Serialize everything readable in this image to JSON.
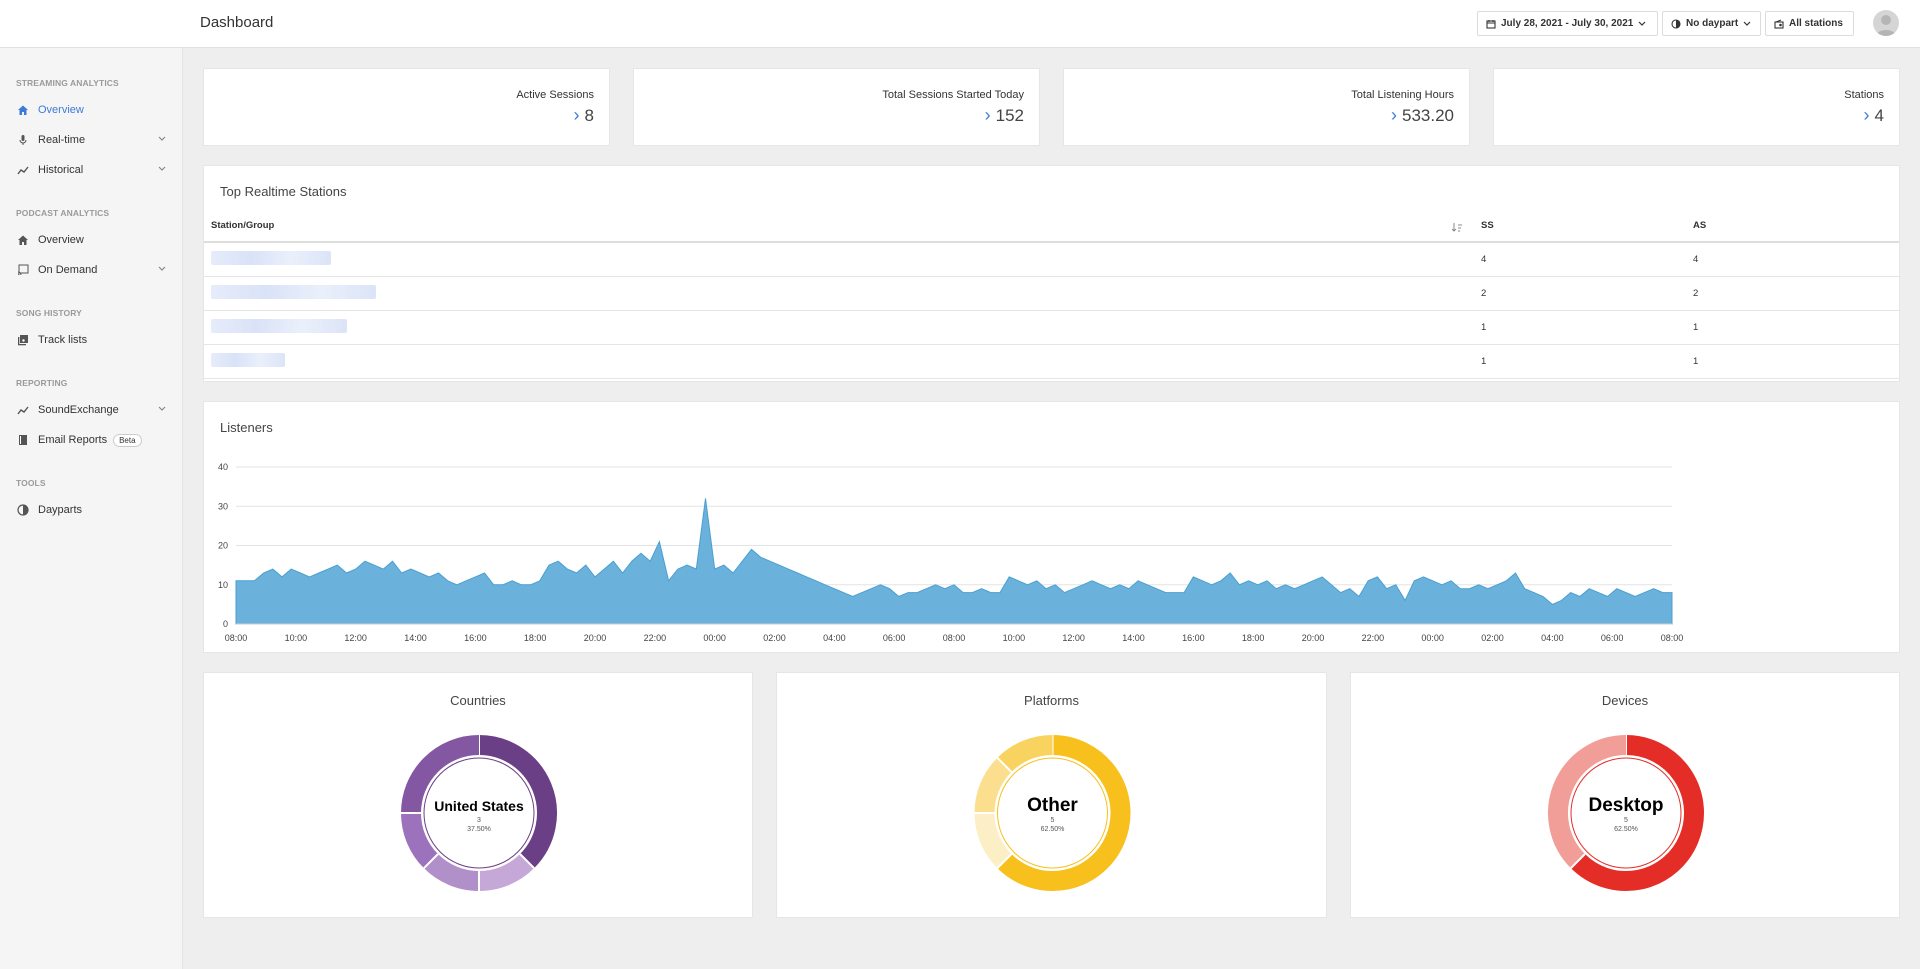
{
  "header": {
    "title": "Dashboard",
    "date_range": "July 28, 2021 - July 30, 2021",
    "daypart": "No daypart",
    "stations": "All stations"
  },
  "sidebar": {
    "streaming_head": "STREAMING ANALYTICS",
    "overview": "Overview",
    "realtime": "Real-time",
    "historical": "Historical",
    "podcast_head": "PODCAST ANALYTICS",
    "podcast_overview": "Overview",
    "on_demand": "On Demand",
    "song_head": "SONG HISTORY",
    "track_lists": "Track lists",
    "reporting_head": "REPORTING",
    "soundexchange": "SoundExchange",
    "email_reports": "Email Reports",
    "beta": "Beta",
    "tools_head": "TOOLS",
    "dayparts": "Dayparts"
  },
  "stats": [
    {
      "label": "Active Sessions",
      "value": "8"
    },
    {
      "label": "Total Sessions Started Today",
      "value": "152"
    },
    {
      "label": "Total Listening Hours",
      "value": "533.20"
    },
    {
      "label": "Stations",
      "value": "4"
    }
  ],
  "top_stations": {
    "title": "Top Realtime Stations",
    "columns": [
      "Station/Group",
      "SS",
      "AS"
    ],
    "rows": [
      {
        "ss": "4",
        "as": "4"
      },
      {
        "ss": "2",
        "as": "2"
      },
      {
        "ss": "1",
        "as": "1"
      },
      {
        "ss": "1",
        "as": "1"
      }
    ]
  },
  "listeners": {
    "title": "Listeners"
  },
  "chart_data": {
    "type": "area",
    "color": "#6ab2dc",
    "ylim": [
      0,
      40
    ],
    "yticks": [
      "0",
      "10",
      "20",
      "30",
      "40"
    ],
    "xticks": [
      "08:00",
      "10:00",
      "12:00",
      "14:00",
      "16:00",
      "18:00",
      "20:00",
      "22:00",
      "00:00",
      "02:00",
      "04:00",
      "06:00",
      "08:00",
      "10:00",
      "12:00",
      "14:00",
      "16:00",
      "18:00",
      "20:00",
      "22:00",
      "00:00",
      "02:00",
      "04:00",
      "06:00",
      "08:00"
    ],
    "values": [
      11,
      11,
      11,
      13,
      14,
      12,
      14,
      13,
      12,
      13,
      14,
      15,
      13,
      14,
      16,
      15,
      14,
      16,
      13,
      14,
      13,
      12,
      13,
      11,
      10,
      11,
      12,
      13,
      10,
      10,
      11,
      10,
      10,
      11,
      15,
      16,
      14,
      13,
      15,
      12,
      14,
      16,
      13,
      16,
      18,
      16,
      21,
      11,
      14,
      15,
      14,
      32,
      14,
      15,
      13,
      16,
      19,
      17,
      16,
      15,
      14,
      13,
      12,
      11,
      10,
      9,
      8,
      7,
      8,
      9,
      10,
      9,
      7,
      8,
      8,
      9,
      10,
      9,
      10,
      8,
      8,
      9,
      8,
      8,
      12,
      11,
      10,
      11,
      9,
      10,
      8,
      9,
      10,
      11,
      10,
      9,
      10,
      9,
      11,
      10,
      9,
      8,
      8,
      8,
      12,
      11,
      10,
      11,
      13,
      10,
      11,
      10,
      11,
      9,
      10,
      9,
      10,
      11,
      12,
      10,
      8,
      9,
      7,
      11,
      12,
      9,
      10,
      6,
      11,
      12,
      11,
      10,
      11,
      9,
      9,
      10,
      9,
      10,
      11,
      13,
      9,
      8,
      7,
      5,
      6,
      8,
      7,
      9,
      8,
      7,
      9,
      8,
      7,
      8,
      9,
      8,
      8
    ],
    "title": "Listeners"
  },
  "breakdowns": [
    {
      "title": "Countries",
      "center_label": "United States",
      "center_count": "3",
      "center_pct": "37.50%",
      "slices": [
        {
          "value": 3,
          "color": "#6a3f86"
        },
        {
          "value": 1,
          "color": "#c6a8d8"
        },
        {
          "value": 1,
          "color": "#b18fc8"
        },
        {
          "value": 1,
          "color": "#9b72bb"
        },
        {
          "value": 2,
          "color": "#8457a3"
        }
      ]
    },
    {
      "title": "Platforms",
      "center_label": "Other",
      "center_count": "5",
      "center_pct": "62.50%",
      "slices": [
        {
          "value": 5,
          "color": "#f8c01d"
        },
        {
          "value": 1,
          "color": "#fcefc6"
        },
        {
          "value": 1,
          "color": "#fbdf8f"
        },
        {
          "value": 1,
          "color": "#f9d35f"
        }
      ]
    },
    {
      "title": "Devices",
      "center_label": "Desktop",
      "center_count": "5",
      "center_pct": "62.50%",
      "slices": [
        {
          "value": 5,
          "color": "#e42d27"
        },
        {
          "value": 3,
          "color": "#f19d98"
        }
      ]
    }
  ]
}
